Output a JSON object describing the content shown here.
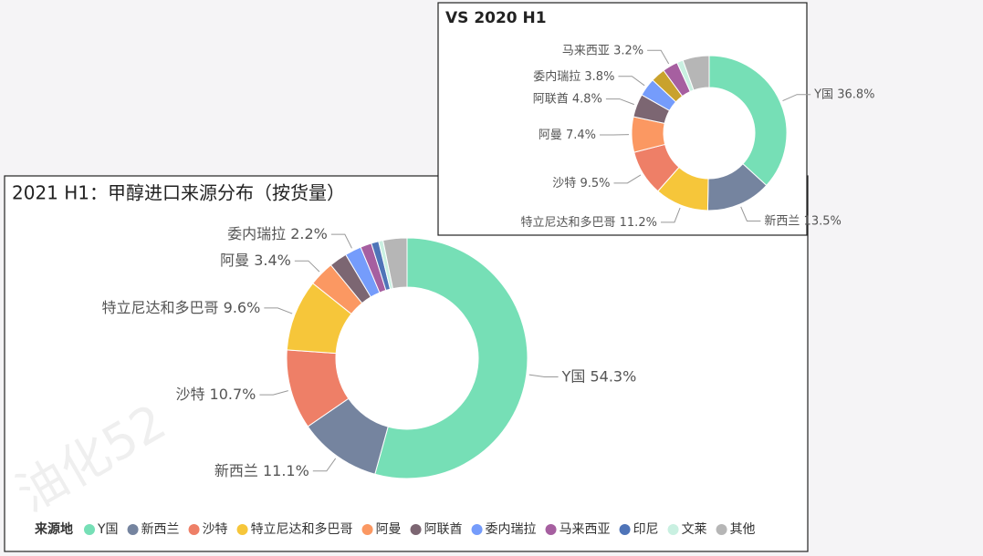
{
  "chart_data": [
    {
      "type": "donut",
      "title": "2021 H1：甲醇进口来源分布（按货量）",
      "legend_title": "来源地",
      "categories": [
        "Y国",
        "新西兰",
        "沙特",
        "特立尼达和多巴哥",
        "阿曼",
        "阿联酋",
        "委内瑞拉",
        "马来西亚",
        "印尼",
        "文莱",
        "其他"
      ],
      "values": [
        54.3,
        11.1,
        10.7,
        9.6,
        3.4,
        2.4,
        2.2,
        1.5,
        1.0,
        0.6,
        3.2
      ],
      "value_labels": [
        "54.3%",
        "11.1%",
        "10.7%",
        "9.6%",
        "3.4%",
        null,
        "2.2%",
        null,
        null,
        null,
        null
      ],
      "colors": [
        "#76dfb6",
        "#75849f",
        "#ee7f67",
        "#f6c63a",
        "#fb9862",
        "#7c6672",
        "#759cfb",
        "#a65fa0",
        "#4f74b8",
        "#c9f0e1",
        "#b6b6b6"
      ],
      "legend": "bottom",
      "watermark": "油化52"
    },
    {
      "type": "donut",
      "title": "VS 2020 H1",
      "categories": [
        "Y国",
        "新西兰",
        "特立尼达和多巴哥",
        "沙特",
        "阿曼",
        "阿联酋",
        "委内瑞拉",
        "印尼",
        "马来西亚",
        "文莱",
        "其他"
      ],
      "values": [
        36.8,
        13.5,
        11.2,
        9.5,
        7.4,
        4.8,
        3.8,
        3.0,
        3.2,
        1.3,
        5.5
      ],
      "value_labels": [
        "36.8%",
        "13.5%",
        "11.2%",
        "9.5%",
        "7.4%",
        "4.8%",
        "3.8%",
        null,
        "3.2%",
        null,
        null
      ],
      "colors": [
        "#76dfb6",
        "#75849f",
        "#f6c63a",
        "#ee7f67",
        "#fb9862",
        "#7c6672",
        "#759cfb",
        "#c9a22d",
        "#a65fa0",
        "#c9f0e1",
        "#b6b6b6"
      ]
    }
  ]
}
